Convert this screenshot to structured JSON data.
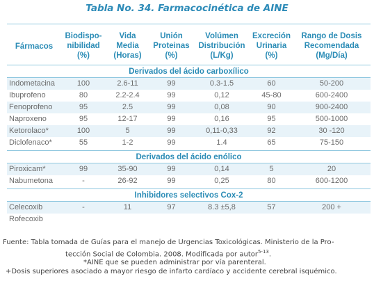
{
  "title": "Tabla No. 34. Farmacocinética de AINE",
  "headers": [
    [
      "Fármacos"
    ],
    [
      "Biodispo-",
      "nibilidad",
      "(%)"
    ],
    [
      "Vida",
      "Media",
      "(Horas)"
    ],
    [
      "Unión",
      "Proteinas",
      "(%)"
    ],
    [
      "Volúmen",
      "Distribución",
      "(L/Kg)"
    ],
    [
      "Excreción",
      "Urinaria",
      "(%)"
    ],
    [
      "Rango de Dosis",
      "Recomendada",
      "(Mg/Día)"
    ]
  ],
  "sections": [
    {
      "title": "Derivados del ácido carboxílico",
      "rows": [
        [
          "Indometacina",
          "100",
          "2.6-11",
          "99",
          "0.3-1.5",
          "60",
          "50-200"
        ],
        [
          "Ibuprofeno",
          "80",
          "2.2-2.4",
          "99",
          "0,12",
          "45-80",
          "600-2400"
        ],
        [
          "Fenoprofeno",
          "95",
          "2.5",
          "99",
          "0,08",
          "90",
          "900-2400"
        ],
        [
          "Naproxeno",
          "95",
          "12-17",
          "99",
          "0,16",
          "95",
          "500-1000"
        ],
        [
          "Ketorolaco*",
          "100",
          "5",
          "99",
          "0,11-0,33",
          "92",
          "30 -120"
        ],
        [
          "Diclofenaco*",
          "55",
          "1-2",
          "99",
          "1.4",
          "65",
          "75-150"
        ]
      ]
    },
    {
      "title": "Derivados del ácido enólico",
      "rows": [
        [
          "Piroxicam*",
          "99",
          "35-90",
          "99",
          "0,14",
          "5",
          "20"
        ],
        [
          "Nabumetona",
          "-",
          "26-92",
          "99",
          "0,25",
          "80",
          "600-1200"
        ]
      ]
    },
    {
      "title": "Inhibidores selectivos Cox-2",
      "rows": [
        [
          "Celecoxib",
          "-",
          "11",
          "97",
          "8.3 ±5,8",
          "57",
          "200 +"
        ],
        [
          "Rofecoxib",
          "",
          "",
          "",
          "",
          "",
          ""
        ]
      ]
    }
  ],
  "footer": {
    "line1": "Fuente: Tabla tomada de Guías para el manejo de Urgencias Toxicológicas. Ministerio de la Pro-",
    "line2": "tección Social de Colombia. 2008. Modificada por autor",
    "line2_sup": "5-13",
    "line2_end": ".",
    "line3": "*AINE que se pueden administrar por vía parenteral.",
    "line4": "+Dosis superiores asociado a mayor riesgo de infarto cardíaco y accidente cerebral isquémico."
  },
  "colors": {
    "accent": "#2b8cb6",
    "row_shade": "#e8f3f9",
    "rule": "#8fc7df",
    "text": "#6b6b6b"
  }
}
